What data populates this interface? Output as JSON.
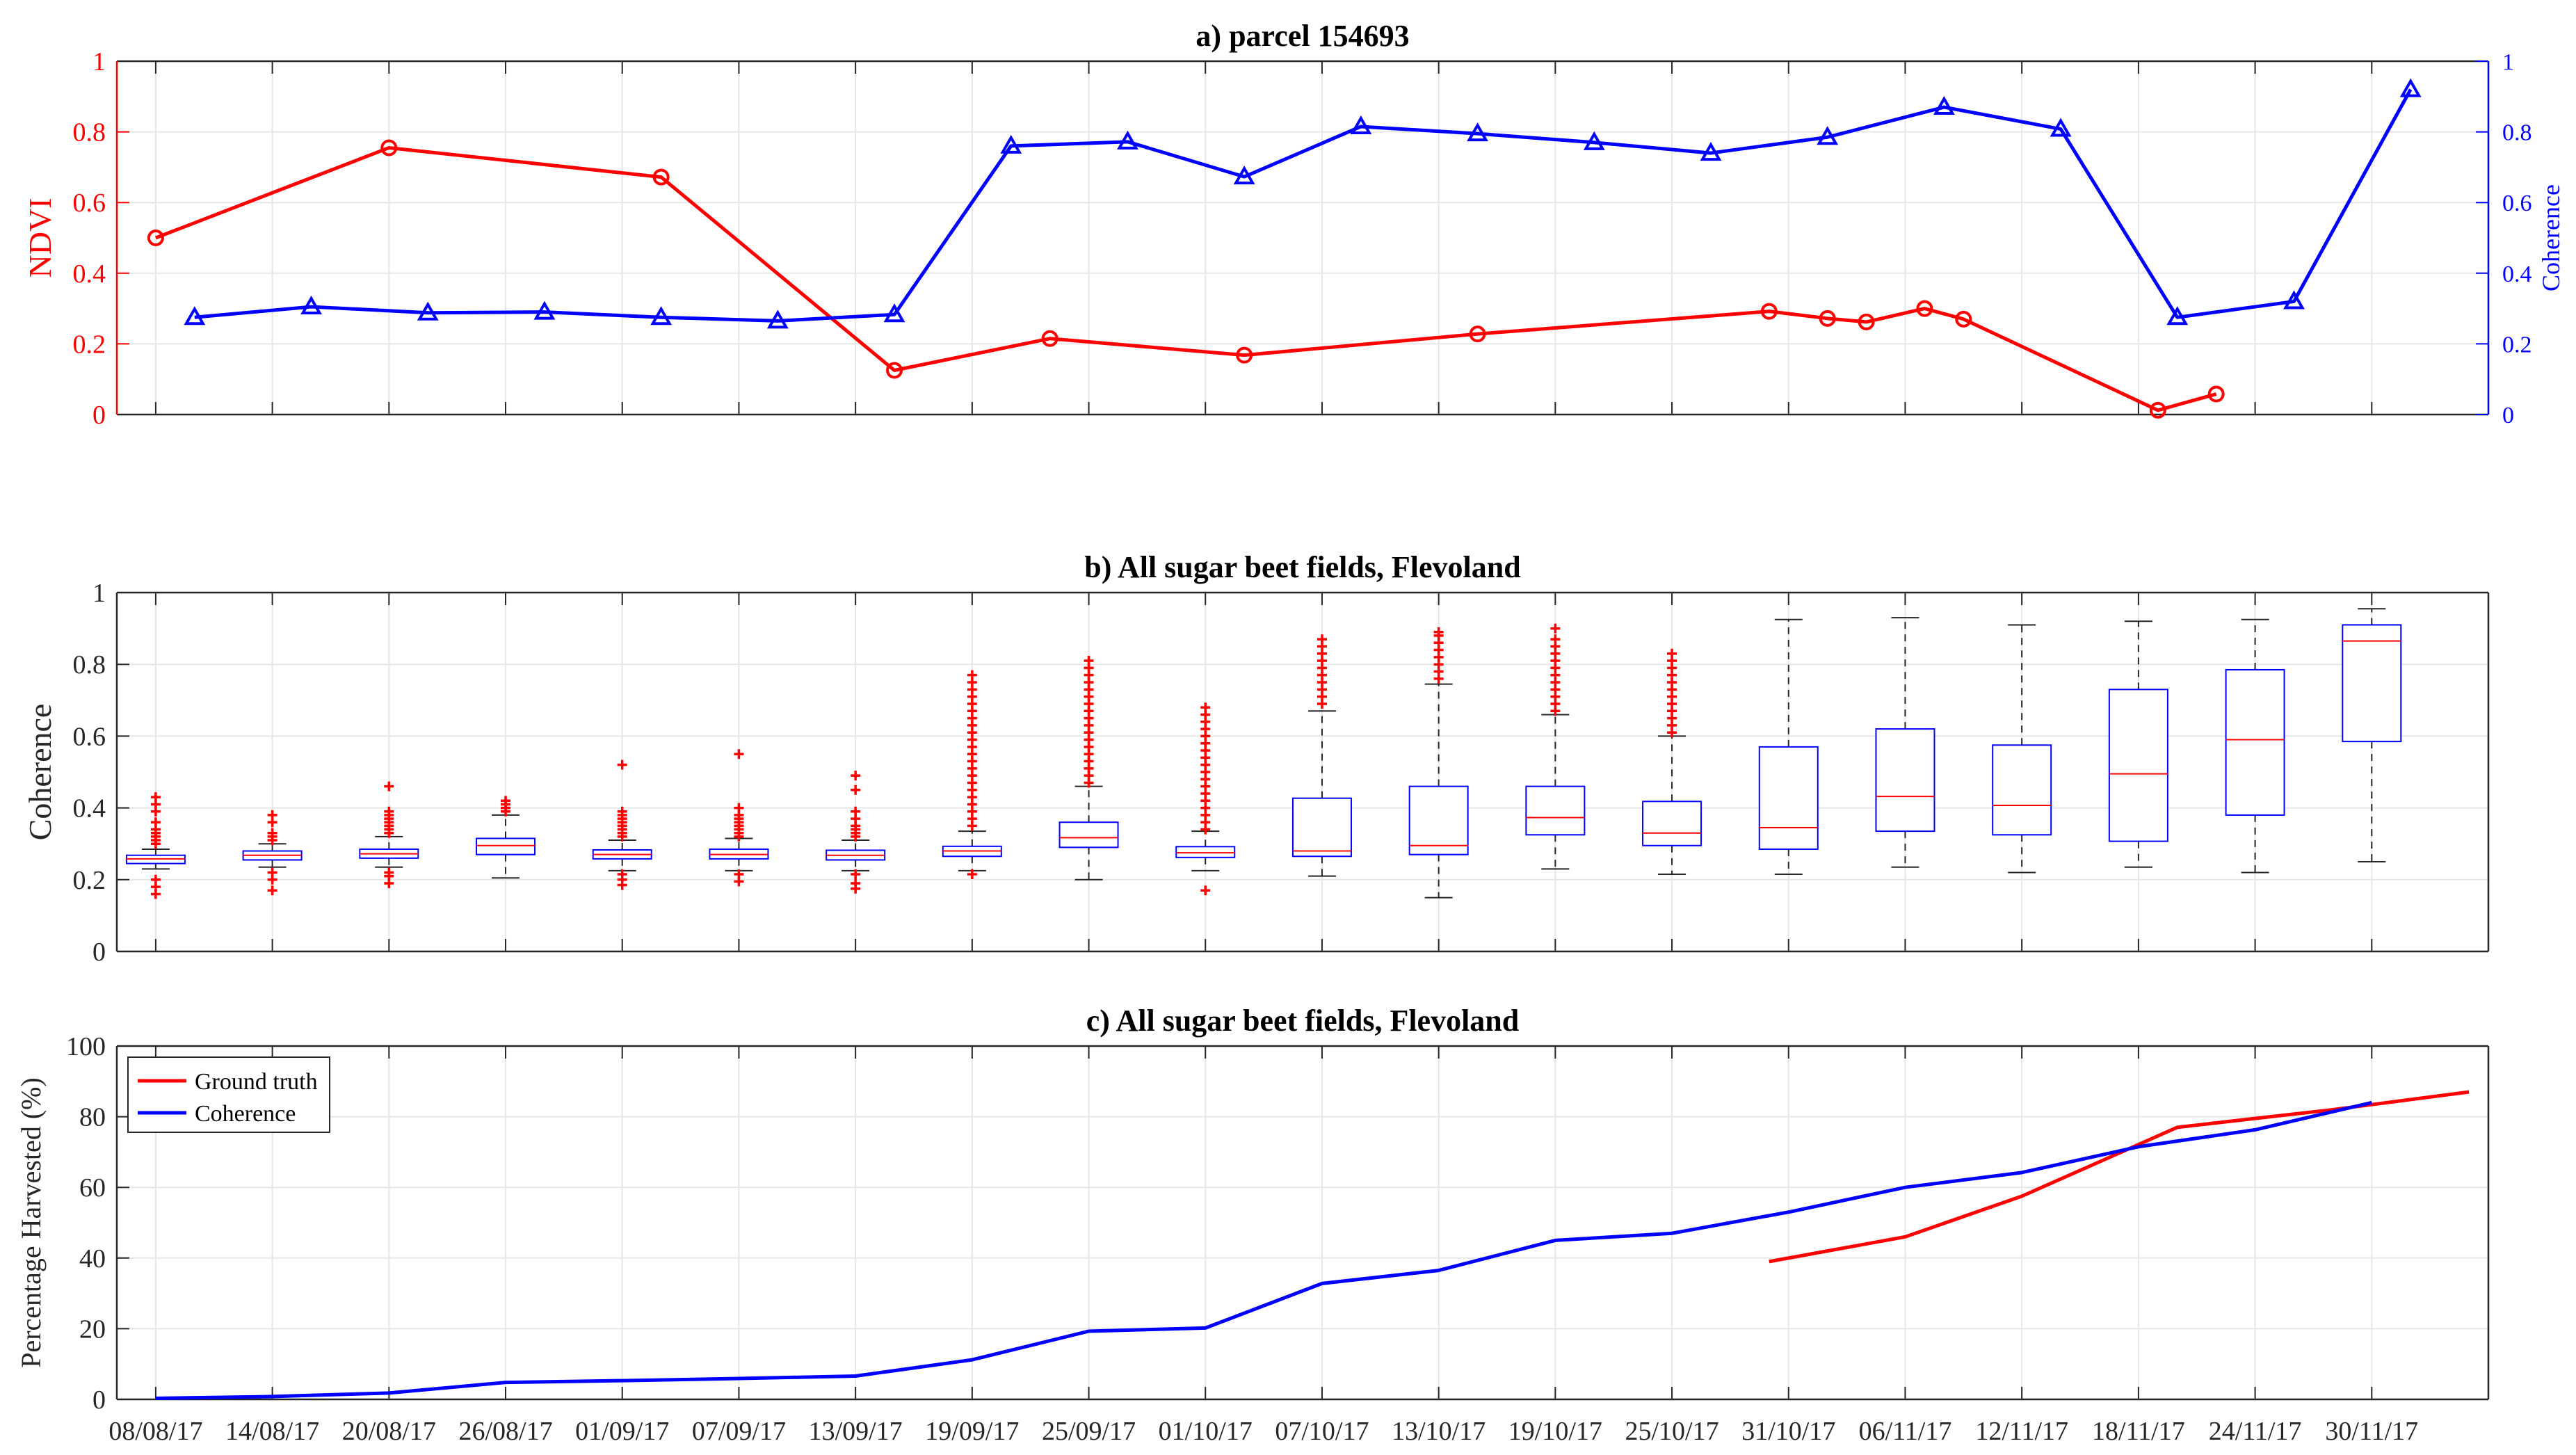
{
  "chart_data": [
    {
      "type": "line",
      "title": "a)  parcel 154693",
      "xlabel": "",
      "ylabel": "NDVI",
      "ylabel_right": "Coherence",
      "ylim": [
        0,
        1
      ],
      "ylim_right": [
        0,
        1
      ],
      "yticks": [
        "0",
        "0.2",
        "0.4",
        "0.6",
        "0.8",
        "1"
      ],
      "yticks_right": [
        "0",
        "0.2",
        "0.4",
        "0.6",
        "0.8",
        "1"
      ],
      "grid": true,
      "colors": {
        "ndvi": "#ff0000",
        "coherence": "#0000ff"
      },
      "series": [
        {
          "axis": "left",
          "marker": "circle",
          "color": "#ff0000",
          "points": [
            [
              "2017-08-08",
              0.5
            ],
            [
              "2017-08-20",
              0.755
            ],
            [
              "2017-09-03",
              0.672
            ],
            [
              "2017-09-15",
              0.125
            ],
            [
              "2017-09-23",
              0.215
            ],
            [
              "2017-10-03",
              0.168
            ],
            [
              "2017-10-15",
              0.228
            ],
            [
              "2017-10-30",
              0.292
            ],
            [
              "2017-11-02",
              0.272
            ],
            [
              "2017-11-04",
              0.262
            ],
            [
              "2017-11-07",
              0.3
            ],
            [
              "2017-11-09",
              0.27
            ],
            [
              "2017-11-19",
              0.012
            ],
            [
              "2017-11-22",
              0.058
            ]
          ]
        },
        {
          "axis": "right",
          "marker": "triangle",
          "color": "#0000ff",
          "points": [
            [
              "2017-08-10",
              0.275
            ],
            [
              "2017-08-16",
              0.305
            ],
            [
              "2017-08-22",
              0.288
            ],
            [
              "2017-08-28",
              0.29
            ],
            [
              "2017-09-03",
              0.275
            ],
            [
              "2017-09-09",
              0.265
            ],
            [
              "2017-09-15",
              0.283
            ],
            [
              "2017-09-21",
              0.76
            ],
            [
              "2017-09-27",
              0.772
            ],
            [
              "2017-10-03",
              0.673
            ],
            [
              "2017-10-09",
              0.815
            ],
            [
              "2017-10-15",
              0.795
            ],
            [
              "2017-10-21",
              0.77
            ],
            [
              "2017-10-27",
              0.74
            ],
            [
              "2017-11-02",
              0.785
            ],
            [
              "2017-11-08",
              0.87
            ],
            [
              "2017-11-14",
              0.808
            ],
            [
              "2017-11-20",
              0.275
            ],
            [
              "2017-11-26",
              0.32
            ],
            [
              "2017-12-02",
              0.92
            ]
          ]
        }
      ]
    },
    {
      "type": "box",
      "title": "b) All sugar beet fields, Flevoland",
      "xlabel": "",
      "ylabel": "Coherence",
      "ylim": [
        0,
        1
      ],
      "yticks": [
        "0",
        "0.2",
        "0.4",
        "0.6",
        "0.8",
        "1"
      ],
      "grid": true,
      "colors": {
        "box": "#0000ff",
        "median": "#ff0000",
        "whisker": "#000000",
        "outlier": "#ff0000"
      },
      "boxes": [
        {
          "date": "2017-08-08",
          "wlo": 0.23,
          "q1": 0.245,
          "med": 0.258,
          "q3": 0.268,
          "whi": 0.285,
          "out_hi": [
            0.3,
            0.31,
            0.32,
            0.33,
            0.34,
            0.36,
            0.39,
            0.41,
            0.43
          ],
          "out_lo": [
            0.2,
            0.18,
            0.16
          ]
        },
        {
          "date": "2017-08-14",
          "wlo": 0.235,
          "q1": 0.255,
          "med": 0.268,
          "q3": 0.28,
          "whi": 0.3,
          "out_hi": [
            0.31,
            0.32,
            0.33,
            0.36,
            0.38
          ],
          "out_lo": [
            0.22,
            0.2,
            0.17
          ]
        },
        {
          "date": "2017-08-20",
          "wlo": 0.235,
          "q1": 0.26,
          "med": 0.272,
          "q3": 0.285,
          "whi": 0.32,
          "out_hi": [
            0.33,
            0.34,
            0.35,
            0.36,
            0.37,
            0.38,
            0.39,
            0.46
          ],
          "out_lo": [
            0.22,
            0.21,
            0.19
          ]
        },
        {
          "date": "2017-08-26",
          "wlo": 0.205,
          "q1": 0.27,
          "med": 0.295,
          "q3": 0.315,
          "whi": 0.38,
          "out_hi": [
            0.39,
            0.4,
            0.41,
            0.42
          ],
          "out_lo": []
        },
        {
          "date": "2017-09-01",
          "wlo": 0.225,
          "q1": 0.258,
          "med": 0.27,
          "q3": 0.283,
          "whi": 0.31,
          "out_hi": [
            0.32,
            0.33,
            0.34,
            0.35,
            0.36,
            0.37,
            0.38,
            0.39,
            0.52
          ],
          "out_lo": [
            0.215,
            0.2,
            0.185
          ]
        },
        {
          "date": "2017-09-07",
          "wlo": 0.225,
          "q1": 0.258,
          "med": 0.27,
          "q3": 0.285,
          "whi": 0.315,
          "out_hi": [
            0.32,
            0.33,
            0.34,
            0.35,
            0.36,
            0.37,
            0.38,
            0.4,
            0.55
          ],
          "out_lo": [
            0.215,
            0.195
          ]
        },
        {
          "date": "2017-09-13",
          "wlo": 0.225,
          "q1": 0.255,
          "med": 0.268,
          "q3": 0.282,
          "whi": 0.31,
          "out_hi": [
            0.32,
            0.33,
            0.34,
            0.35,
            0.37,
            0.39,
            0.45,
            0.49
          ],
          "out_lo": [
            0.215,
            0.19,
            0.175
          ]
        },
        {
          "date": "2017-09-19",
          "wlo": 0.225,
          "q1": 0.265,
          "med": 0.28,
          "q3": 0.293,
          "whi": 0.335,
          "out_hi": [
            0.35,
            0.37,
            0.39,
            0.41,
            0.43,
            0.45,
            0.47,
            0.49,
            0.51,
            0.53,
            0.55,
            0.57,
            0.59,
            0.61,
            0.63,
            0.65,
            0.67,
            0.69,
            0.71,
            0.73,
            0.75,
            0.77
          ],
          "out_lo": [
            0.215
          ]
        },
        {
          "date": "2017-09-25",
          "wlo": 0.2,
          "q1": 0.29,
          "med": 0.317,
          "q3": 0.36,
          "whi": 0.46,
          "out_hi": [
            0.47,
            0.49,
            0.51,
            0.53,
            0.55,
            0.57,
            0.59,
            0.61,
            0.63,
            0.65,
            0.67,
            0.69,
            0.71,
            0.73,
            0.75,
            0.77,
            0.79,
            0.81
          ],
          "out_lo": []
        },
        {
          "date": "2017-10-01",
          "wlo": 0.225,
          "q1": 0.262,
          "med": 0.275,
          "q3": 0.292,
          "whi": 0.335,
          "out_hi": [
            0.34,
            0.36,
            0.38,
            0.4,
            0.42,
            0.44,
            0.46,
            0.48,
            0.5,
            0.52,
            0.54,
            0.56,
            0.58,
            0.6,
            0.62,
            0.64,
            0.66,
            0.68
          ],
          "out_lo": [
            0.17
          ]
        },
        {
          "date": "2017-10-07",
          "wlo": 0.21,
          "q1": 0.265,
          "med": 0.28,
          "q3": 0.427,
          "whi": 0.67,
          "out_hi": [
            0.69,
            0.71,
            0.73,
            0.75,
            0.77,
            0.79,
            0.81,
            0.83,
            0.85,
            0.87
          ],
          "out_lo": []
        },
        {
          "date": "2017-10-13",
          "wlo": 0.15,
          "q1": 0.27,
          "med": 0.295,
          "q3": 0.46,
          "whi": 0.745,
          "out_hi": [
            0.76,
            0.78,
            0.8,
            0.82,
            0.84,
            0.86,
            0.88,
            0.89
          ],
          "out_lo": []
        },
        {
          "date": "2017-10-19",
          "wlo": 0.23,
          "q1": 0.325,
          "med": 0.373,
          "q3": 0.46,
          "whi": 0.66,
          "out_hi": [
            0.67,
            0.69,
            0.71,
            0.73,
            0.75,
            0.77,
            0.79,
            0.81,
            0.83,
            0.85,
            0.87,
            0.9
          ],
          "out_lo": []
        },
        {
          "date": "2017-10-25",
          "wlo": 0.215,
          "q1": 0.295,
          "med": 0.33,
          "q3": 0.418,
          "whi": 0.6,
          "out_hi": [
            0.61,
            0.63,
            0.65,
            0.67,
            0.69,
            0.71,
            0.73,
            0.75,
            0.77,
            0.79,
            0.81,
            0.83
          ],
          "out_lo": []
        },
        {
          "date": "2017-10-31",
          "wlo": 0.215,
          "q1": 0.285,
          "med": 0.345,
          "q3": 0.57,
          "whi": 0.925,
          "out_hi": [],
          "out_lo": []
        },
        {
          "date": "2017-11-06",
          "wlo": 0.235,
          "q1": 0.335,
          "med": 0.432,
          "q3": 0.62,
          "whi": 0.93,
          "out_hi": [],
          "out_lo": []
        },
        {
          "date": "2017-11-12",
          "wlo": 0.22,
          "q1": 0.325,
          "med": 0.407,
          "q3": 0.575,
          "whi": 0.91,
          "out_hi": [],
          "out_lo": []
        },
        {
          "date": "2017-11-18",
          "wlo": 0.235,
          "q1": 0.307,
          "med": 0.495,
          "q3": 0.73,
          "whi": 0.92,
          "out_hi": [],
          "out_lo": []
        },
        {
          "date": "2017-11-24",
          "wlo": 0.22,
          "q1": 0.38,
          "med": 0.59,
          "q3": 0.785,
          "whi": 0.925,
          "out_hi": [],
          "out_lo": []
        },
        {
          "date": "2017-11-30",
          "wlo": 0.25,
          "q1": 0.585,
          "med": 0.865,
          "q3": 0.91,
          "whi": 0.955,
          "out_hi": [],
          "out_lo": []
        }
      ]
    },
    {
      "type": "line",
      "title": "c) All sugar beet fields, Flevoland",
      "xlabel": "",
      "ylabel": "Percentage Harvested (%)",
      "ylim": [
        0,
        100
      ],
      "yticks": [
        "0",
        "20",
        "40",
        "60",
        "80",
        "100"
      ],
      "xticks": [
        "08/08/17",
        "14/08/17",
        "20/08/17",
        "26/08/17",
        "01/09/17",
        "07/09/17",
        "13/09/17",
        "19/09/17",
        "25/09/17",
        "01/10/17",
        "07/10/17",
        "13/10/17",
        "19/10/17",
        "25/10/17",
        "31/10/17",
        "06/11/17",
        "12/11/17",
        "18/11/17",
        "24/11/17",
        "30/11/17"
      ],
      "legend_position": "top-left",
      "grid": true,
      "series": [
        {
          "name": "Ground truth",
          "color": "#ff0000",
          "points": [
            [
              "2017-10-30",
              39
            ],
            [
              "2017-11-06",
              46
            ],
            [
              "2017-11-12",
              57.5
            ],
            [
              "2017-11-20",
              77
            ],
            [
              "2017-11-28",
              82
            ],
            [
              "2017-12-05",
              87
            ]
          ]
        },
        {
          "name": "Coherence",
          "color": "#0000ff",
          "points": [
            [
              "2017-08-08",
              0.3
            ],
            [
              "2017-08-14",
              0.8
            ],
            [
              "2017-08-20",
              1.8
            ],
            [
              "2017-08-26",
              4.8
            ],
            [
              "2017-09-01",
              5.3
            ],
            [
              "2017-09-07",
              5.9
            ],
            [
              "2017-09-13",
              6.6
            ],
            [
              "2017-09-19",
              11.2
            ],
            [
              "2017-09-25",
              19.3
            ],
            [
              "2017-10-01",
              20.2
            ],
            [
              "2017-10-07",
              32.8
            ],
            [
              "2017-10-13",
              36.5
            ],
            [
              "2017-10-19",
              45
            ],
            [
              "2017-10-25",
              47
            ],
            [
              "2017-10-31",
              53
            ],
            [
              "2017-11-06",
              60
            ],
            [
              "2017-11-12",
              64.2
            ],
            [
              "2017-11-18",
              71.5
            ],
            [
              "2017-11-24",
              76.3
            ],
            [
              "2017-11-30",
              84
            ]
          ]
        }
      ]
    }
  ]
}
